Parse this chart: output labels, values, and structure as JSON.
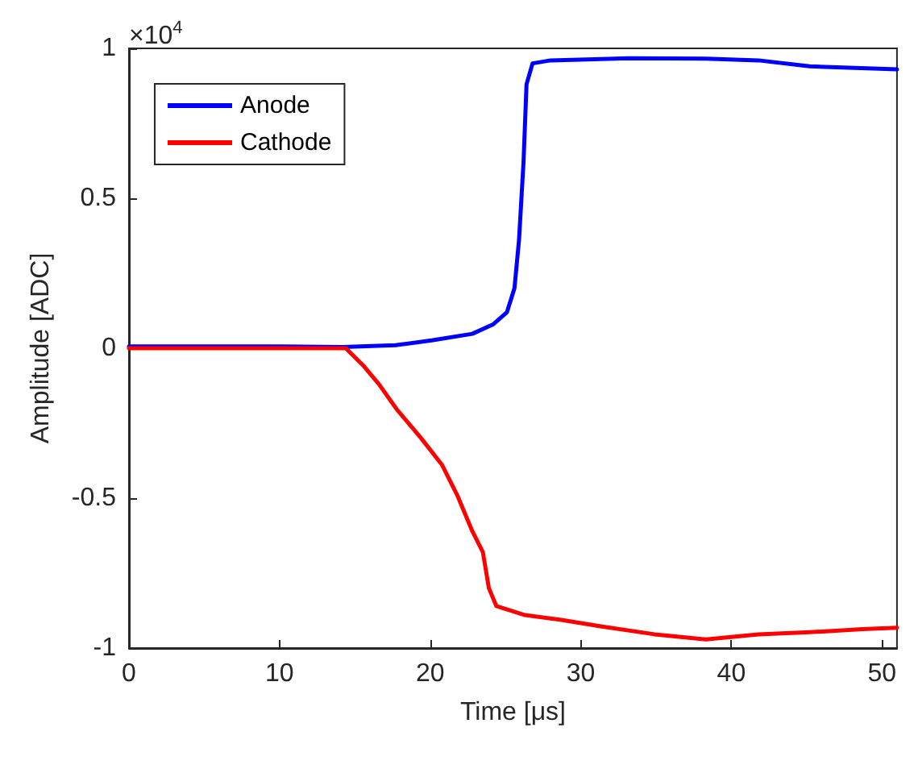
{
  "chart_data": {
    "type": "line",
    "xlabel": "Time [μs]",
    "ylabel": "Amplitude [ADC]",
    "annotations": [
      "×10$^{4}$"
    ],
    "xlim": [
      0,
      51
    ],
    "xticks": [
      0,
      10,
      20,
      30,
      40,
      50
    ],
    "ylim": [
      -1,
      1
    ],
    "yticks": [
      -1,
      -0.5,
      0,
      0.5,
      1
    ],
    "grid": false,
    "legend": "top left",
    "marker": "none",
    "line_style": "solid",
    "series": [
      {
        "name": "Anode",
        "color": "#0000ff",
        "x": [
          0,
          5,
          10,
          14.2,
          17.7,
          20.1,
          22.8,
          24.2,
          25.1,
          25.6,
          25.9,
          26.2,
          26.4,
          26.8,
          28,
          33.2,
          38.3,
          41.8,
          45.2,
          51
        ],
        "values": [
          0.006,
          0.006,
          0.006,
          0.004,
          0.01,
          0.026,
          0.048,
          0.08,
          0.12,
          0.2,
          0.36,
          0.62,
          0.88,
          0.95,
          0.96,
          0.967,
          0.966,
          0.96,
          0.94,
          0.93
        ]
      },
      {
        "name": "Cathode",
        "color": "#ff0000",
        "x": [
          0,
          5,
          10,
          14.4,
          15.6,
          16.6,
          17.8,
          19.4,
          20.8,
          21.8,
          22.8,
          23.5,
          23.9,
          24.4,
          26.3,
          28.7,
          31.4,
          34.9,
          38.3,
          41.8,
          45.2,
          48.7,
          51
        ],
        "values": [
          0,
          0,
          0,
          0,
          -0.06,
          -0.12,
          -0.205,
          -0.3,
          -0.39,
          -0.49,
          -0.61,
          -0.68,
          -0.8,
          -0.86,
          -0.89,
          -0.906,
          -0.928,
          -0.954,
          -0.971,
          -0.954,
          -0.947,
          -0.937,
          -0.932
        ]
      }
    ]
  }
}
